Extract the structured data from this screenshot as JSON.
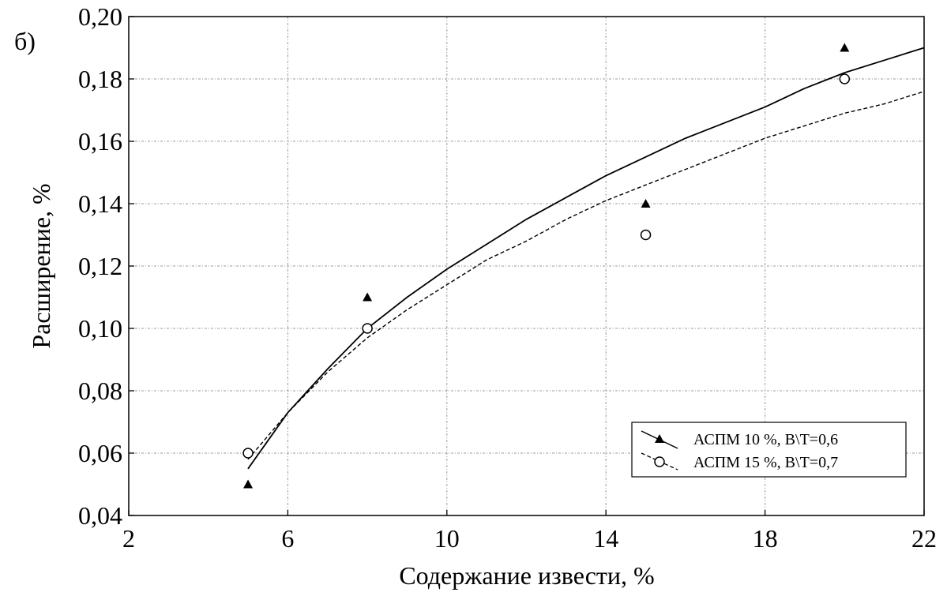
{
  "chart_data": {
    "type": "scatter",
    "panel_label": "б)",
    "title": "",
    "xlabel": "Содержание извести, %",
    "ylabel": "Расширение, %",
    "xlim": [
      2,
      22
    ],
    "ylim": [
      0.04,
      0.2
    ],
    "x_ticks": [
      2,
      6,
      10,
      14,
      18,
      22
    ],
    "x_tick_labels": [
      "2",
      "6",
      "10",
      "14",
      "18",
      "22"
    ],
    "y_ticks": [
      0.04,
      0.06,
      0.08,
      0.1,
      0.12,
      0.14,
      0.16,
      0.18,
      0.2
    ],
    "y_tick_labels": [
      "0,04",
      "0,06",
      "0,08",
      "0,10",
      "0,12",
      "0,14",
      "0,16",
      "0,18",
      "0,20"
    ],
    "grid": true,
    "legend_position": "bottom-right",
    "series": [
      {
        "name": "АСПМ 10 %, В\\Т=0,6",
        "marker": "filled-triangle",
        "line_style": "solid",
        "x": [
          5,
          8,
          15,
          20
        ],
        "y": [
          0.05,
          0.11,
          0.14,
          0.19
        ],
        "fit_x": [
          5,
          6,
          7,
          8,
          9,
          10,
          11,
          12,
          13,
          14,
          15,
          16,
          17,
          18,
          19,
          20,
          21,
          22
        ],
        "fit_y": [
          0.055,
          0.073,
          0.087,
          0.1,
          0.11,
          0.119,
          0.127,
          0.135,
          0.142,
          0.149,
          0.155,
          0.161,
          0.166,
          0.171,
          0.177,
          0.182,
          0.186,
          0.19
        ]
      },
      {
        "name": "АСПМ 15 %, В\\Т=0,7",
        "marker": "open-circle",
        "line_style": "dashed",
        "x": [
          5,
          8,
          15,
          20
        ],
        "y": [
          0.06,
          0.1,
          0.13,
          0.18
        ],
        "fit_x": [
          5,
          6,
          7,
          8,
          9,
          10,
          11,
          12,
          13,
          14,
          15,
          16,
          17,
          18,
          19,
          20,
          21,
          22
        ],
        "fit_y": [
          0.058,
          0.073,
          0.086,
          0.097,
          0.106,
          0.114,
          0.122,
          0.128,
          0.135,
          0.141,
          0.146,
          0.151,
          0.156,
          0.161,
          0.165,
          0.169,
          0.172,
          0.176
        ]
      }
    ]
  }
}
